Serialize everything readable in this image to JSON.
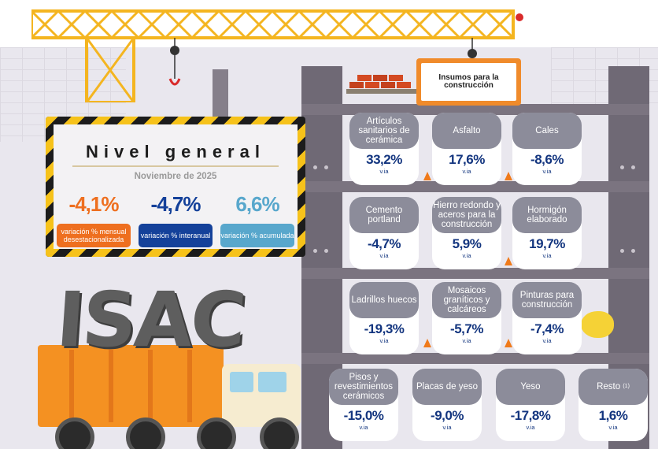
{
  "sign": {
    "text": "Insumos para la construcción"
  },
  "panel": {
    "title": "Nivel general",
    "subtitle": "Noviembre de 2025",
    "metrics": [
      {
        "value": "-4,1%",
        "label": "variación % mensual desestacionalizada",
        "color": "#ee6f1f",
        "label_bg": "#ee6f1f"
      },
      {
        "value": "-4,7%",
        "label": "variación % interanual",
        "color": "#14419a",
        "label_bg": "#14419a"
      },
      {
        "value": "6,6%",
        "label": "variación % acumulada",
        "color": "#58a7cc",
        "label_bg": "#58a7cc"
      }
    ]
  },
  "logo_text": "ISAC",
  "items": [
    {
      "label": "Artículos sanitarios de cerámica",
      "value": "33,2%",
      "unit": "v.ia"
    },
    {
      "label": "Asfalto",
      "value": "17,6%",
      "unit": "v.ia"
    },
    {
      "label": "Cales",
      "value": "-8,6%",
      "unit": "v.ia"
    },
    {
      "label": "Cemento portland",
      "value": "-4,7%",
      "unit": "v.ia"
    },
    {
      "label": "Hierro redondo y aceros para la construcción",
      "value": "5,9%",
      "unit": "v.ia"
    },
    {
      "label": "Hormigón elaborado",
      "value": "19,7%",
      "unit": "v.ia"
    },
    {
      "label": "Ladrillos huecos",
      "value": "-19,3%",
      "unit": "v.ia"
    },
    {
      "label": "Mosaicos graníticos y calcáreos",
      "value": "-5,7%",
      "unit": "v.ia"
    },
    {
      "label": "Pinturas para construcción",
      "value": "-7,4%",
      "unit": "v.ia"
    },
    {
      "label": "Pisos y revestimientos cerámicos",
      "value": "-15,0%",
      "unit": "v.ia"
    },
    {
      "label": "Placas de yeso",
      "value": "-9,0%",
      "unit": "v.ia"
    },
    {
      "label": "Yeso",
      "value": "-17,8%",
      "unit": "v.ia"
    },
    {
      "label": "Resto",
      "footnote": "(1)",
      "value": "1,6%",
      "unit": "v.ia"
    }
  ],
  "colors": {
    "orange": "#ee6f1f",
    "navy": "#14419a",
    "light_blue": "#58a7cc",
    "pill_gray": "#8c8c9a",
    "value_blue": "#13357f"
  },
  "icons": [
    "crane-icon",
    "hook-icon",
    "bricks-icon",
    "traffic-cone-icon",
    "dump-truck-icon",
    "cement-mixer-icon"
  ]
}
